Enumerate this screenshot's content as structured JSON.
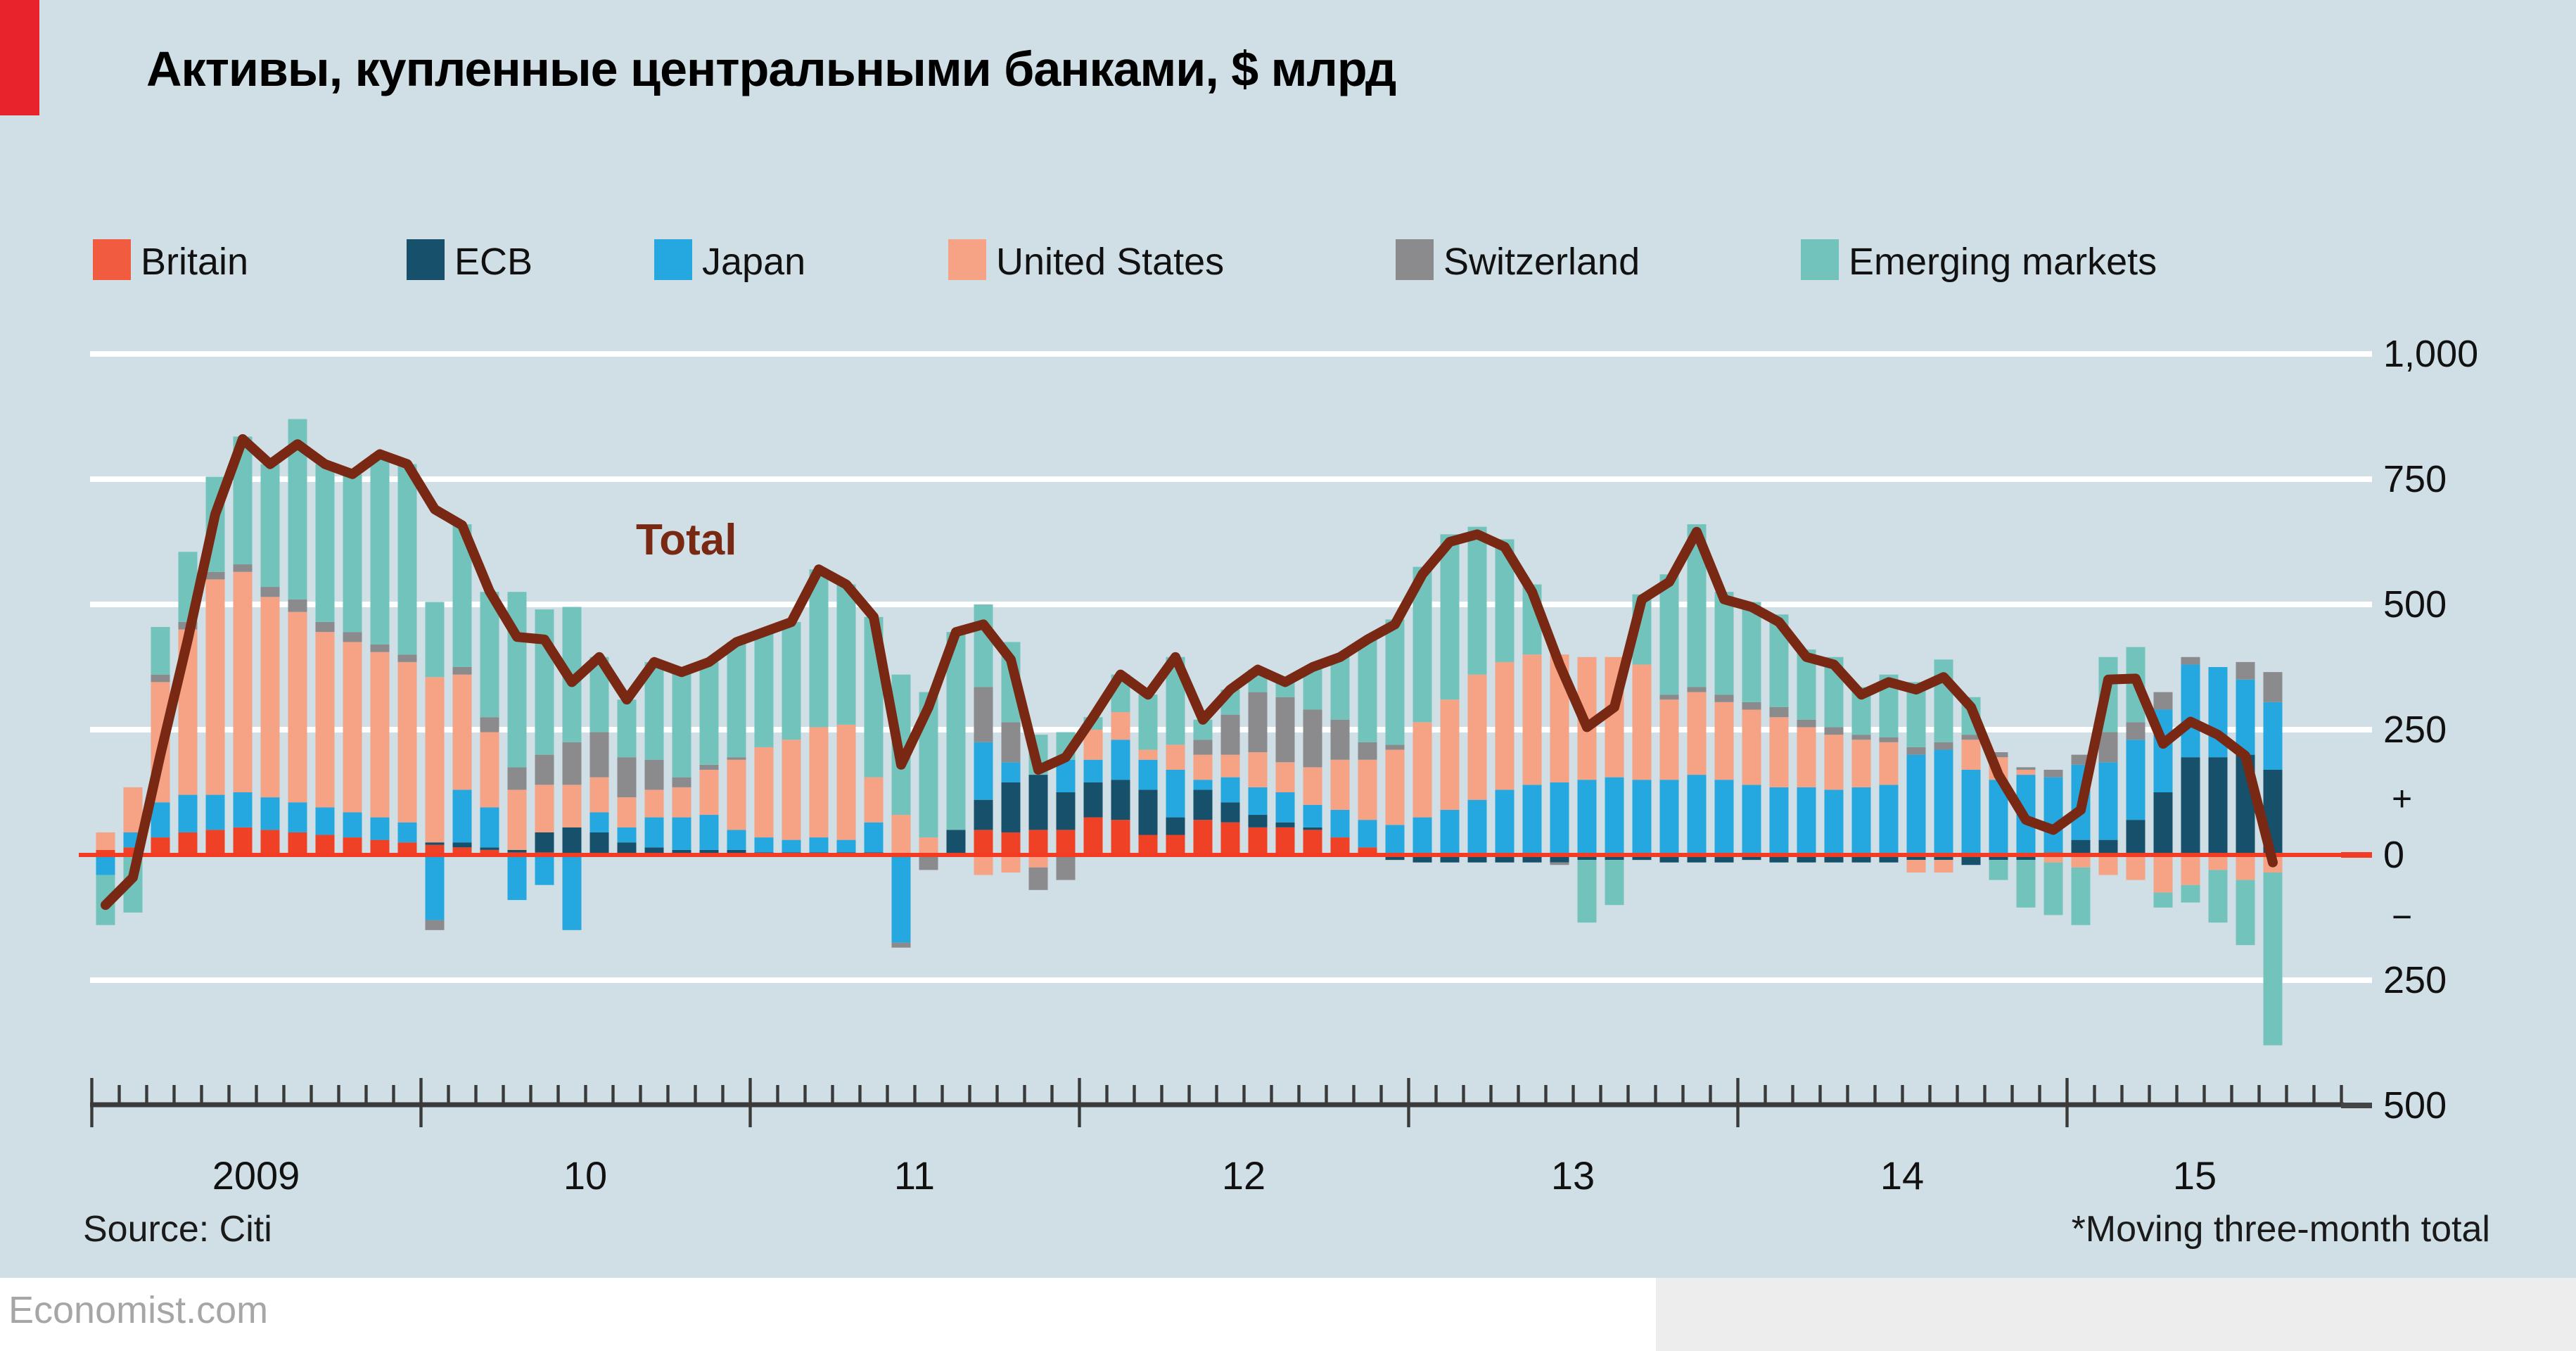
{
  "ui": {
    "title": "Активы, купленные центральными банками, $ млрд",
    "source": "Source: Citi",
    "footnote": "*Moving three-month total",
    "brand": "Economist.com",
    "total_label": "Total"
  },
  "colors": {
    "background": "#d0dfe5",
    "red_tab": "#e8232b",
    "zero_line": "#f23c23",
    "gridline": "#ffffff",
    "axis": "#3a3a3a",
    "total_line": "#782813",
    "text": "#111111",
    "brand_text": "#a6a6a6"
  },
  "chart_data": {
    "type": "bar",
    "subtype": "stacked-monthly-bars-with-total-line",
    "title": "Активы, купленные центральными банками, $ млрд",
    "xlabel": "",
    "ylabel": "$ bn, moving three-month total",
    "ylim": [
      -500,
      1000
    ],
    "y_tick_step": 250,
    "grid": "horizontal-white",
    "legend_position": "top",
    "x_start": "2009-01",
    "x_end": "2015-08",
    "frequency": "monthly",
    "year_labels": [
      "2009",
      "10",
      "11",
      "12",
      "13",
      "14",
      "15"
    ],
    "y_tick_labels_right": [
      "1,000",
      "750",
      "500",
      "250",
      "+",
      "0",
      "−",
      "250",
      "500"
    ],
    "series": [
      {
        "name": "Britain",
        "color": "#ee4125",
        "legend_color": "#f15b40",
        "values": [
          10,
          15,
          35,
          45,
          50,
          55,
          50,
          45,
          40,
          35,
          30,
          25,
          20,
          15,
          10,
          5,
          5,
          0,
          0,
          0,
          0,
          0,
          0,
          0,
          0,
          0,
          0,
          0,
          0,
          0,
          0,
          0,
          50,
          45,
          50,
          50,
          75,
          70,
          40,
          40,
          70,
          65,
          55,
          55,
          50,
          35,
          15,
          0,
          0,
          0,
          0,
          0,
          0,
          0,
          0,
          0,
          0,
          0,
          0,
          0,
          0,
          0,
          0,
          0,
          0,
          0,
          0,
          0,
          0,
          0,
          0,
          5,
          0,
          0,
          0,
          0,
          0,
          0,
          0,
          0
        ]
      },
      {
        "name": "ECB",
        "color": "#17506a",
        "legend_color": "#17506a",
        "values": [
          0,
          0,
          0,
          0,
          0,
          0,
          0,
          0,
          0,
          0,
          0,
          0,
          5,
          10,
          5,
          5,
          40,
          55,
          45,
          25,
          15,
          10,
          10,
          10,
          5,
          5,
          5,
          5,
          5,
          0,
          0,
          50,
          60,
          100,
          110,
          75,
          70,
          80,
          90,
          35,
          60,
          40,
          25,
          10,
          5,
          0,
          0,
          -10,
          -15,
          -15,
          -15,
          -15,
          -15,
          -15,
          -10,
          -10,
          -10,
          -15,
          -15,
          -15,
          -10,
          -15,
          -15,
          -15,
          -15,
          -15,
          -10,
          -10,
          -20,
          -10,
          -10,
          0,
          30,
          30,
          70,
          125,
          195,
          195,
          200,
          170
        ]
      },
      {
        "name": "Japan",
        "color": "#25a8e0",
        "legend_color": "#25a8e0",
        "values": [
          -40,
          30,
          70,
          75,
          70,
          70,
          65,
          60,
          55,
          50,
          45,
          40,
          -130,
          105,
          80,
          -90,
          -60,
          -150,
          40,
          30,
          60,
          65,
          70,
          40,
          30,
          25,
          30,
          25,
          60,
          -175,
          0,
          0,
          115,
          40,
          0,
          65,
          45,
          80,
          60,
          95,
          20,
          50,
          55,
          60,
          45,
          55,
          55,
          60,
          75,
          90,
          110,
          130,
          140,
          145,
          150,
          155,
          150,
          150,
          160,
          150,
          140,
          135,
          135,
          130,
          135,
          140,
          200,
          210,
          170,
          150,
          160,
          150,
          150,
          155,
          160,
          165,
          185,
          180,
          150,
          135
        ]
      },
      {
        "name": "United States",
        "color": "#f5a285",
        "legend_color": "#f5a285",
        "values": [
          35,
          90,
          240,
          330,
          430,
          440,
          400,
          380,
          350,
          340,
          330,
          320,
          330,
          230,
          150,
          120,
          95,
          85,
          70,
          60,
          55,
          60,
          90,
          140,
          180,
          200,
          220,
          230,
          90,
          80,
          35,
          0,
          -40,
          -35,
          -25,
          0,
          60,
          55,
          20,
          50,
          50,
          45,
          70,
          60,
          75,
          100,
          120,
          150,
          190,
          220,
          250,
          255,
          260,
          255,
          245,
          240,
          230,
          160,
          165,
          155,
          150,
          140,
          120,
          110,
          95,
          85,
          -25,
          -25,
          60,
          45,
          10,
          -15,
          -25,
          -40,
          -50,
          -75,
          -60,
          -30,
          -50,
          -35
        ]
      },
      {
        "name": "Switzerland",
        "color": "#8b8b8e",
        "legend_color": "#8b8b8e",
        "values": [
          0,
          0,
          15,
          15,
          15,
          15,
          20,
          25,
          20,
          20,
          15,
          15,
          -20,
          15,
          30,
          45,
          60,
          85,
          90,
          80,
          60,
          20,
          10,
          5,
          0,
          0,
          0,
          0,
          0,
          -10,
          -30,
          0,
          110,
          80,
          -45,
          -50,
          0,
          0,
          0,
          0,
          30,
          80,
          120,
          130,
          115,
          80,
          35,
          10,
          0,
          0,
          0,
          0,
          0,
          -5,
          0,
          0,
          0,
          10,
          10,
          15,
          15,
          20,
          15,
          15,
          10,
          10,
          15,
          15,
          10,
          10,
          5,
          15,
          20,
          60,
          35,
          35,
          15,
          0,
          35,
          60
        ]
      },
      {
        "name": "Emerging markets",
        "color": "#72c3bc",
        "legend_color": "#72c3bc",
        "values": [
          -100,
          -115,
          95,
          140,
          190,
          255,
          245,
          360,
          315,
          315,
          380,
          380,
          150,
          285,
          250,
          350,
          290,
          270,
          150,
          115,
          195,
          210,
          205,
          230,
          230,
          235,
          315,
          280,
          320,
          280,
          290,
          395,
          165,
          160,
          80,
          55,
          25,
          75,
          110,
          175,
          40,
          50,
          45,
          30,
          85,
          125,
          205,
          250,
          310,
          330,
          295,
          245,
          140,
          0,
          -125,
          -90,
          140,
          240,
          325,
          205,
          200,
          185,
          140,
          140,
          95,
          125,
          130,
          165,
          75,
          -40,
          -95,
          -105,
          -115,
          150,
          150,
          -30,
          -35,
          -105,
          -130,
          -345
        ]
      }
    ],
    "total": {
      "label": "Total",
      "color": "#782813",
      "values": [
        -100,
        -45,
        200,
        430,
        680,
        830,
        780,
        820,
        780,
        760,
        800,
        780,
        690,
        658,
        526,
        435,
        430,
        345,
        395,
        310,
        385,
        365,
        385,
        425,
        445,
        465,
        570,
        540,
        475,
        180,
        295,
        445,
        460,
        390,
        170,
        195,
        275,
        360,
        320,
        395,
        270,
        330,
        370,
        345,
        375,
        395,
        430,
        460,
        560,
        625,
        640,
        615,
        525,
        380,
        255,
        295,
        510,
        545,
        645,
        510,
        495,
        465,
        395,
        380,
        320,
        345,
        330,
        355,
        295,
        160,
        70,
        50,
        90,
        350,
        352,
        222,
        266,
        240,
        198,
        -15
      ]
    }
  },
  "legend_layout_x": [
    66,
    289,
    465,
    674,
    992,
    1280
  ]
}
